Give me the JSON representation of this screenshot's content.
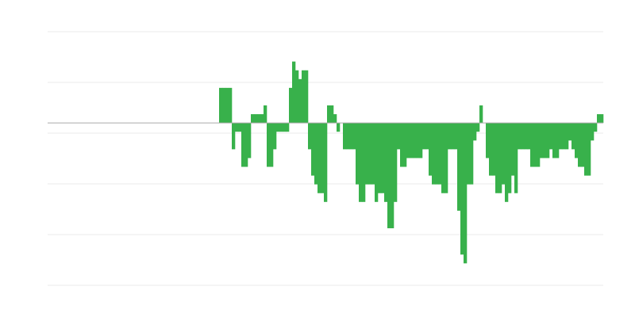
{
  "chart_data": {
    "type": "bar",
    "title": "",
    "xlabel": "",
    "ylabel": "",
    "ylim": [
      -18.5,
      10.4
    ],
    "grid": true,
    "legend": "none",
    "colors": {
      "bar": "#38b14b",
      "grid": "#ebebeb",
      "zero_line": "#aaaaaa"
    },
    "values": [
      0,
      0,
      0,
      0,
      0,
      0,
      0,
      0,
      0,
      0,
      0,
      0,
      0,
      0,
      0,
      0,
      0,
      0,
      0,
      0,
      0,
      0,
      0,
      0,
      0,
      0,
      0,
      0,
      0,
      0,
      0,
      0,
      0,
      0,
      0,
      0,
      0,
      0,
      0,
      0,
      0,
      0,
      0,
      0,
      0,
      0,
      0,
      0,
      0,
      0,
      0,
      0,
      0,
      0,
      4,
      4,
      4,
      4,
      -3,
      -1,
      -1,
      -5,
      -5,
      -4,
      1,
      1,
      1,
      1,
      2,
      -5,
      -5,
      -3,
      -1,
      -1,
      -1,
      -1,
      4,
      7,
      6,
      5,
      6,
      6,
      -3,
      -6,
      -7,
      -8,
      -8,
      -9,
      2,
      2,
      1,
      -1,
      0,
      -3,
      -3,
      -3,
      -3,
      -7,
      -9,
      -9,
      -7,
      -7,
      -7,
      -9,
      -8,
      -8,
      -9,
      -12,
      -12,
      -9,
      -3,
      -5,
      -5,
      -4,
      -4,
      -4,
      -4,
      -4,
      -3,
      -3,
      -6,
      -7,
      -7,
      -7,
      -8,
      -8,
      -3,
      -3,
      -3,
      -10,
      -15,
      -16,
      -7,
      -7,
      -2,
      -1,
      2,
      0,
      -4,
      -6,
      -6,
      -8,
      -8,
      -7,
      -9,
      -8,
      -6,
      -8,
      -3,
      -3,
      -3,
      -3,
      -5,
      -5,
      -5,
      -4,
      -4,
      -4,
      -3,
      -4,
      -4,
      -3,
      -3,
      -3,
      -2,
      -3,
      -4,
      -5,
      -5,
      -6,
      -6,
      -2,
      -1,
      1,
      1
    ]
  }
}
